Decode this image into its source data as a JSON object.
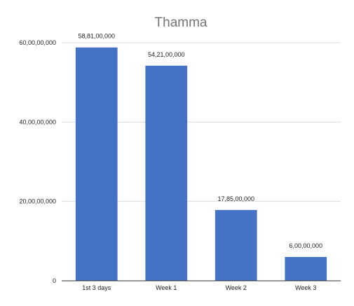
{
  "chart_data": {
    "type": "bar",
    "title": "Thamma",
    "categories": [
      "1st 3 days",
      "Week 1",
      "Week 2",
      "Week 3"
    ],
    "values": [
      588100000,
      542100000,
      178500000,
      60000000
    ],
    "data_labels": [
      "58,81,00,000",
      "54,21,00,000",
      "17,85,00,000",
      "6,00,00,000"
    ],
    "ylim": [
      0,
      600000000
    ],
    "yticks": [
      0,
      200000000,
      400000000,
      600000000
    ],
    "ytick_labels": [
      "0",
      "20,00,00,000",
      "40,00,00,000",
      "60,00,00,000"
    ],
    "xlabel": "",
    "ylabel": "",
    "grid": true,
    "legend": "none",
    "colors": {
      "bar": "#4472c4",
      "title": "#757575",
      "grid": "#dcdcdc"
    }
  }
}
